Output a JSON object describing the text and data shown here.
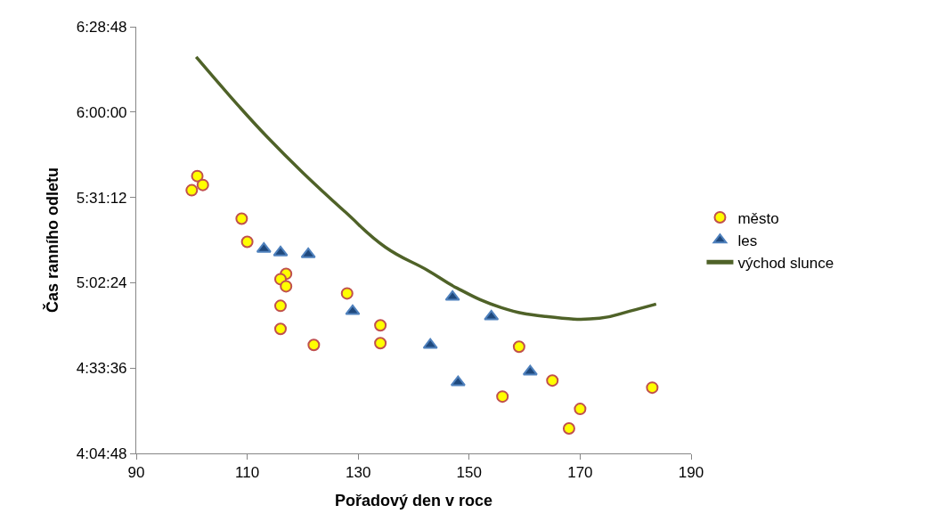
{
  "chart_data": {
    "type": "scatter",
    "xlabel": "Pořadový den v roce",
    "ylabel": "Čas ranního odletu",
    "xlim": [
      90,
      190
    ],
    "xticks": [
      90,
      110,
      130,
      150,
      170,
      190
    ],
    "ylim": [
      4.08,
      6.48
    ],
    "yticks": [
      {
        "value": 4.08,
        "label": "4:04:48"
      },
      {
        "value": 4.56,
        "label": "4:33:36"
      },
      {
        "value": 5.04,
        "label": "5:02:24"
      },
      {
        "value": 5.52,
        "label": "5:31:12"
      },
      {
        "value": 6.0,
        "label": "6:00:00"
      },
      {
        "value": 6.48,
        "label": "6:28:48"
      }
    ],
    "legend": "right",
    "series": [
      {
        "name": "město",
        "marker": "circle",
        "color": "#ffff00",
        "x": [
          100,
          101,
          102,
          109,
          110,
          117,
          116,
          117,
          116,
          116,
          122,
          128,
          134,
          134,
          156,
          159,
          165,
          170,
          168,
          183
        ],
        "values": [
          5.56,
          5.64,
          5.59,
          5.4,
          5.27,
          5.09,
          5.06,
          5.02,
          4.91,
          4.78,
          4.69,
          4.98,
          4.8,
          4.7,
          4.4,
          4.68,
          4.49,
          4.33,
          4.22,
          4.45
        ]
      },
      {
        "name": "les",
        "marker": "triangle",
        "color": "#1f497d",
        "x": [
          113,
          116,
          121,
          129,
          143,
          147,
          148,
          154,
          161
        ],
        "values": [
          5.23,
          5.21,
          5.2,
          4.88,
          4.69,
          4.96,
          4.48,
          4.85,
          4.54
        ]
      },
      {
        "name": "východ slunce",
        "type": "line",
        "marker": "none",
        "color": "#4f6228",
        "x": [
          100.8,
          108.3,
          113.6,
          120.0,
          127.6,
          134.9,
          142.5,
          147.8,
          155.8,
          163.8,
          173.5,
          178.9,
          183.7
        ],
        "values": [
          6.31,
          6.04,
          5.86,
          5.66,
          5.44,
          5.24,
          5.11,
          5.01,
          4.9,
          4.85,
          4.84,
          4.88,
          4.92
        ]
      }
    ]
  }
}
